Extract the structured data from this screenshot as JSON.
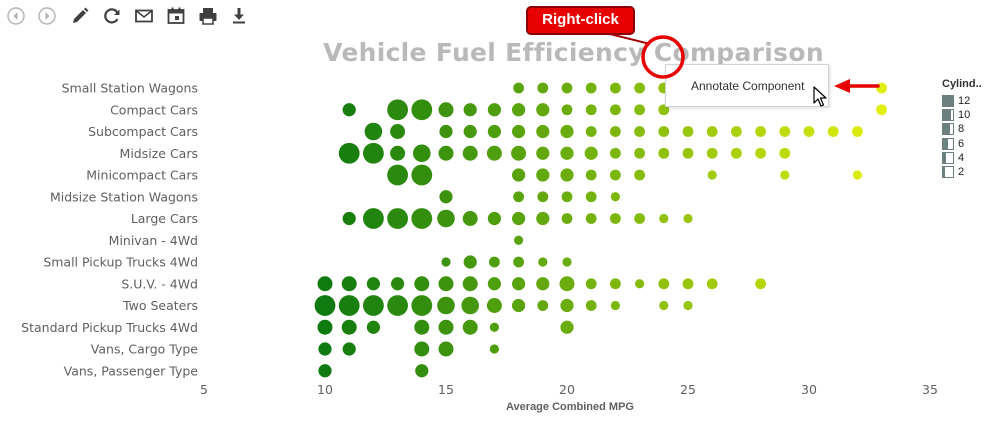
{
  "toolbar": {
    "buttons": [
      {
        "name": "back-button",
        "icon": "circle-left-arrow-icon"
      },
      {
        "name": "forward-button",
        "icon": "circle-right-arrow-icon"
      },
      {
        "name": "edit-button",
        "icon": "pencil-icon"
      },
      {
        "name": "refresh-button",
        "icon": "refresh-icon"
      },
      {
        "name": "email-button",
        "icon": "envelope-icon"
      },
      {
        "name": "schedule-button",
        "icon": "calendar-icon"
      },
      {
        "name": "print-button",
        "icon": "printer-icon"
      },
      {
        "name": "export-button",
        "icon": "download-icon"
      }
    ]
  },
  "annotation": {
    "callout_text": "Right-click"
  },
  "context_menu": {
    "items": [
      "Annotate Component"
    ]
  },
  "legend": {
    "title": "Cylind..",
    "items": [
      "12",
      "10",
      "8",
      "6",
      "4",
      "2"
    ]
  },
  "colors": {
    "low_mpg": "#0f7a0f",
    "high_mpg": "#e2ef0c",
    "title": "#b9b9b9",
    "callout": "#e60000"
  },
  "chart_data": {
    "type": "scatter",
    "title": "Vehicle Fuel Efficiency Comparison",
    "xlabel": "Average Combined MPG",
    "ylabel": "",
    "xlim": [
      5,
      35
    ],
    "xticks": [
      "5",
      "10",
      "15",
      "20",
      "25",
      "30",
      "35"
    ],
    "categories": [
      "Small Station Wagons",
      "Compact Cars",
      "Subcompact Cars",
      "Midsize Cars",
      "Minicompact Cars",
      "Midsize Station Wagons",
      "Large Cars",
      "Minivan - 4Wd",
      "Small Pickup Trucks 4Wd",
      "S.U.V. - 4Wd",
      "Two Seaters",
      "Standard Pickup Trucks 4Wd",
      "Vans, Cargo Type",
      "Vans, Passenger Type"
    ],
    "size_encoding": "Cylinders",
    "color_encoding": "Average Combined MPG",
    "points": [
      {
        "category": "Small Station Wagons",
        "x": [
          18,
          19,
          20,
          21,
          22,
          23,
          24,
          33
        ],
        "cylinders": [
          4,
          4,
          4,
          4,
          4,
          4,
          4,
          4
        ]
      },
      {
        "category": "Compact Cars",
        "x": [
          11,
          13,
          14,
          15,
          16,
          17,
          18,
          19,
          20,
          21,
          22,
          23,
          24,
          33
        ],
        "cylinders": [
          6,
          12,
          12,
          8,
          6,
          6,
          6,
          6,
          4,
          4,
          4,
          4,
          4,
          4
        ]
      },
      {
        "category": "Subcompact Cars",
        "x": [
          12,
          13,
          15,
          16,
          17,
          18,
          19,
          20,
          21,
          22,
          23,
          24,
          25,
          26,
          27,
          28,
          29,
          30,
          31,
          32
        ],
        "cylinders": [
          10,
          8,
          6,
          6,
          6,
          6,
          6,
          6,
          4,
          4,
          4,
          4,
          4,
          4,
          4,
          4,
          4,
          4,
          4,
          4
        ]
      },
      {
        "category": "Midsize Cars",
        "x": [
          11,
          12,
          13,
          14,
          15,
          16,
          17,
          18,
          19,
          20,
          21,
          22,
          23,
          24,
          25,
          26,
          27,
          28,
          29
        ],
        "cylinders": [
          12,
          12,
          8,
          10,
          8,
          8,
          8,
          8,
          6,
          6,
          6,
          4,
          4,
          4,
          4,
          4,
          4,
          4,
          4
        ]
      },
      {
        "category": "Minicompact Cars",
        "x": [
          13,
          14,
          18,
          19,
          20,
          21,
          22,
          23,
          26,
          29,
          32
        ],
        "cylinders": [
          12,
          12,
          6,
          6,
          6,
          4,
          4,
          4,
          2,
          2,
          2
        ]
      },
      {
        "category": "Midsize Station Wagons",
        "x": [
          15,
          18,
          19,
          20,
          21,
          22
        ],
        "cylinders": [
          6,
          4,
          4,
          4,
          4,
          2
        ]
      },
      {
        "category": "Large Cars",
        "x": [
          11,
          12,
          13,
          14,
          15,
          16,
          17,
          18,
          19,
          20,
          21,
          22,
          23,
          24,
          25
        ],
        "cylinders": [
          6,
          12,
          12,
          12,
          10,
          8,
          6,
          6,
          6,
          4,
          4,
          4,
          4,
          2,
          2
        ]
      },
      {
        "category": "Minivan - 4Wd",
        "x": [
          18
        ],
        "cylinders": [
          2
        ]
      },
      {
        "category": "Small Pickup Trucks 4Wd",
        "x": [
          15,
          16,
          17,
          18,
          19,
          20
        ],
        "cylinders": [
          2,
          6,
          4,
          4,
          2,
          2
        ]
      },
      {
        "category": "S.U.V. - 4Wd",
        "x": [
          10,
          11,
          12,
          13,
          14,
          15,
          16,
          17,
          18,
          19,
          20,
          21,
          22,
          23,
          24,
          25,
          26,
          28
        ],
        "cylinders": [
          8,
          8,
          6,
          6,
          8,
          8,
          8,
          6,
          6,
          6,
          8,
          4,
          4,
          2,
          4,
          4,
          4,
          4
        ]
      },
      {
        "category": "Two Seaters",
        "x": [
          10,
          11,
          12,
          13,
          14,
          15,
          16,
          17,
          18,
          19,
          20,
          21,
          22,
          24,
          25
        ],
        "cylinders": [
          12,
          12,
          12,
          12,
          12,
          10,
          10,
          8,
          6,
          4,
          6,
          4,
          2,
          2,
          2
        ]
      },
      {
        "category": "Standard Pickup Trucks 4Wd",
        "x": [
          10,
          11,
          12,
          14,
          15,
          16,
          17,
          20
        ],
        "cylinders": [
          8,
          8,
          6,
          8,
          8,
          8,
          2,
          6
        ]
      },
      {
        "category": "Vans, Cargo Type",
        "x": [
          10,
          11,
          14,
          15,
          17
        ],
        "cylinders": [
          6,
          6,
          8,
          8,
          2
        ]
      },
      {
        "category": "Vans, Passenger Type",
        "x": [
          10,
          14
        ],
        "cylinders": [
          6,
          6
        ]
      }
    ]
  }
}
